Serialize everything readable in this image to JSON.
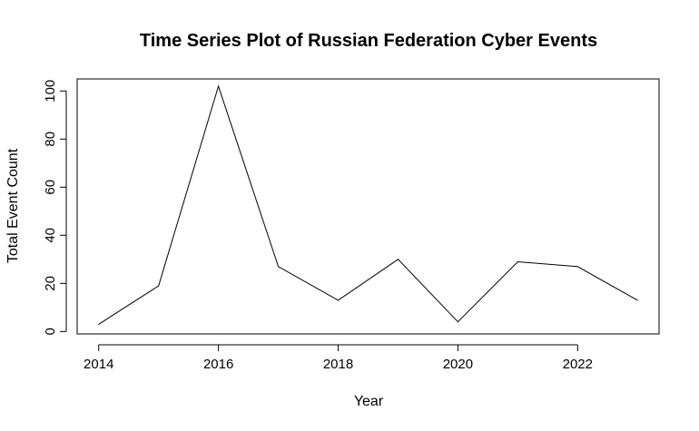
{
  "chart_data": {
    "type": "line",
    "title": "Time Series Plot of Russian Federation Cyber Events",
    "xlabel": "Year",
    "ylabel": "Total Event Count",
    "x": [
      2014,
      2015,
      2016,
      2017,
      2018,
      2019,
      2020,
      2021,
      2022,
      2023
    ],
    "series": [
      {
        "values": [
          3,
          19,
          102,
          27,
          13,
          30,
          4,
          29,
          27,
          13
        ]
      }
    ],
    "xlim": [
      2013.64,
      2023.36
    ],
    "ylim": [
      -1,
      105
    ],
    "x_ticks": [
      2014,
      2016,
      2018,
      2020,
      2022
    ],
    "y_ticks": [
      0,
      20,
      40,
      60,
      80,
      100
    ],
    "x_tick_labels": [
      "2014",
      "2016",
      "2018",
      "2020",
      "2022"
    ],
    "y_tick_labels": [
      "0",
      "20",
      "40",
      "60",
      "80",
      "100"
    ],
    "grid": false,
    "line_color": "#000000"
  }
}
